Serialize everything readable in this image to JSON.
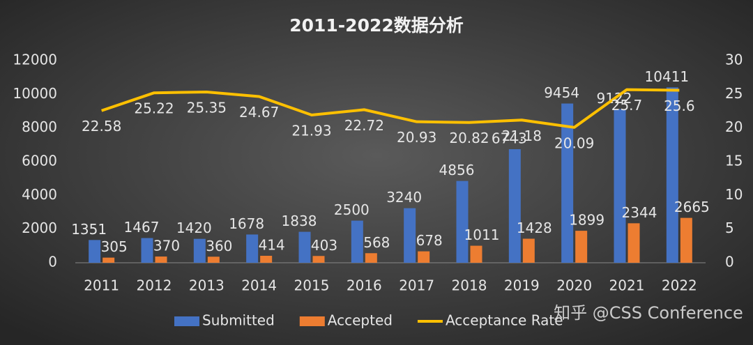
{
  "chart_data": {
    "type": "combo",
    "title": "2011-2022数据分析",
    "watermark": "知乎 @CSS Conference",
    "categories": [
      "2011",
      "2012",
      "2013",
      "2014",
      "2015",
      "2016",
      "2017",
      "2018",
      "2019",
      "2020",
      "2021",
      "2022"
    ],
    "series": [
      {
        "name": "Submitted",
        "type": "bar",
        "color": "#4472c4",
        "values": [
          1351,
          1467,
          1420,
          1678,
          1838,
          2500,
          3240,
          4856,
          6743,
          9454,
          9122,
          10411
        ]
      },
      {
        "name": "Accepted",
        "type": "bar",
        "color": "#ed7d31",
        "values": [
          305,
          370,
          360,
          414,
          403,
          568,
          678,
          1011,
          1428,
          1899,
          2344,
          2665
        ]
      },
      {
        "name": "Acceptance Rate",
        "type": "line",
        "axis": "y2",
        "color": "#ffc000",
        "values": [
          22.58,
          25.22,
          25.35,
          24.67,
          21.93,
          22.72,
          20.93,
          20.82,
          21.18,
          20.09,
          25.7,
          25.6
        ]
      }
    ],
    "ylim": [
      0,
      12000
    ],
    "yticks": [
      0,
      2000,
      4000,
      6000,
      8000,
      10000,
      12000
    ],
    "y2lim": [
      0,
      30
    ],
    "y2ticks": [
      0,
      5,
      10,
      15,
      20,
      25,
      30
    ],
    "grid": false,
    "legend": "bottom"
  }
}
